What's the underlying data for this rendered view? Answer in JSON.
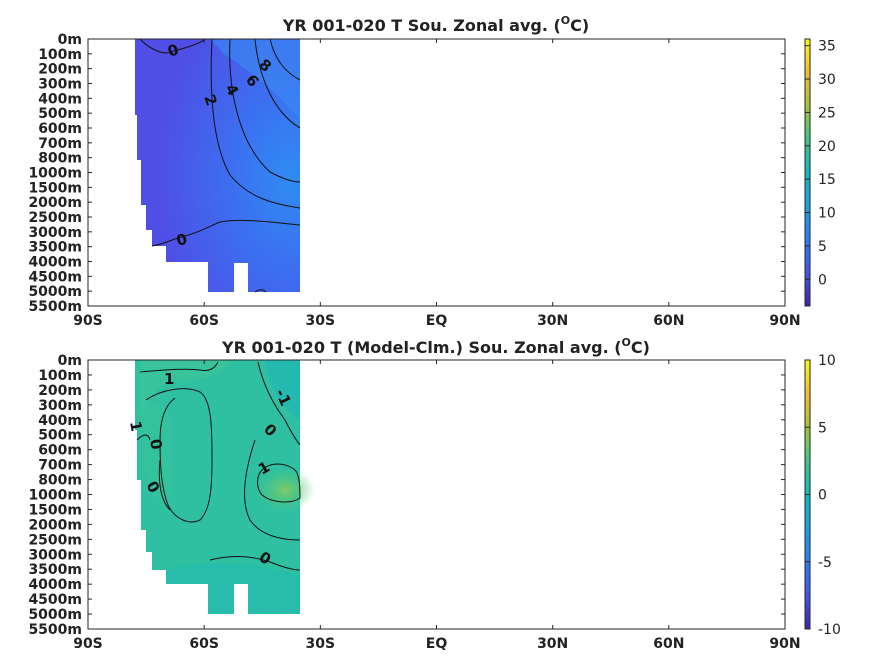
{
  "chart_data": [
    {
      "type": "heatmap",
      "title": "YR 001-020 T Sou. Zonal avg. (°C)",
      "title_main": "YR 001-020 T Sou. Zonal avg. (",
      "title_sup": "O",
      "title_unit": "C)",
      "x_ticks": [
        "90S",
        "60S",
        "30S",
        "EQ",
        "30N",
        "60N",
        "90N"
      ],
      "y_ticks": [
        "0m",
        "100m",
        "200m",
        "300m",
        "400m",
        "500m",
        "600m",
        "700m",
        "800m",
        "1000m",
        "1500m",
        "2000m",
        "2500m",
        "3000m",
        "3500m",
        "4000m",
        "4500m",
        "5000m",
        "5500m"
      ],
      "colorbar_ticks": [
        "35",
        "30",
        "25",
        "20",
        "15",
        "10",
        "5",
        "0"
      ],
      "colorbar_range": [
        -4,
        36
      ],
      "contour_labels": [
        "0",
        "2",
        "4",
        "6",
        "8",
        "0"
      ],
      "colormap": "parula",
      "data_extent_lat": [
        "78S",
        "34S"
      ]
    },
    {
      "type": "heatmap",
      "title": "YR 001-020 T (Model-Clm.) Sou. Zonal avg. (°C)",
      "title_main": "YR 001-020 T (Model-Clm.) Sou. Zonal avg. (",
      "title_sup": "O",
      "title_unit": "C)",
      "x_ticks": [
        "90S",
        "60S",
        "30S",
        "EQ",
        "30N",
        "60N",
        "90N"
      ],
      "y_ticks": [
        "0m",
        "100m",
        "200m",
        "300m",
        "400m",
        "500m",
        "600m",
        "700m",
        "800m",
        "1000m",
        "1500m",
        "2000m",
        "2500m",
        "3000m",
        "3500m",
        "4000m",
        "4500m",
        "5000m",
        "5500m"
      ],
      "colorbar_ticks": [
        "10",
        "5",
        "0",
        "-5",
        "-10"
      ],
      "colorbar_range": [
        -10,
        10
      ],
      "contour_labels": [
        "1",
        "-1",
        "1",
        "0",
        "0",
        "0",
        "1",
        "0"
      ],
      "colormap": "parula",
      "data_extent_lat": [
        "78S",
        "34S"
      ]
    }
  ]
}
